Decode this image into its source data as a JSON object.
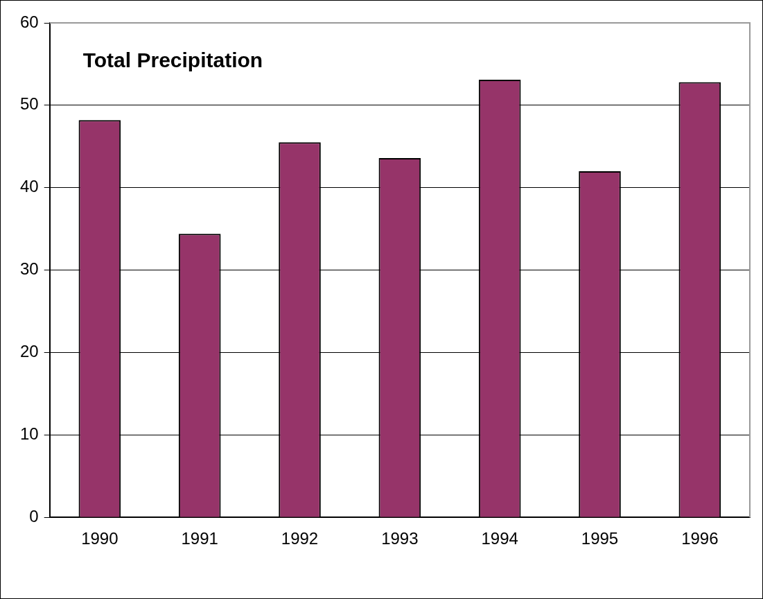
{
  "chart_data": {
    "type": "bar",
    "title": "Total Precipitation",
    "categories": [
      "1990",
      "1991",
      "1992",
      "1993",
      "1994",
      "1995",
      "1996"
    ],
    "values": [
      48.2,
      34.4,
      45.5,
      43.6,
      53.1,
      42.0,
      52.8
    ],
    "color": "#963469",
    "ylim": [
      0,
      60
    ],
    "yticks": [
      0,
      10,
      20,
      30,
      40,
      50,
      60
    ],
    "grid": "y",
    "legend": false
  }
}
